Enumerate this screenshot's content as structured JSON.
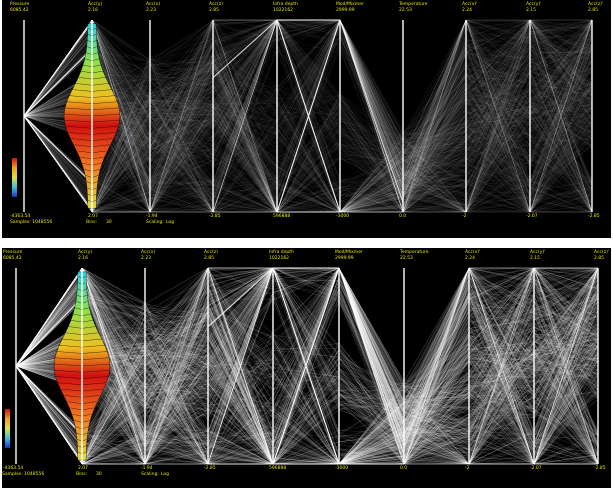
{
  "colors": {
    "background": "#000000",
    "label": "#e8e800",
    "axis": "#ffffff",
    "lines": "#ffffff"
  },
  "axes": [
    {
      "name": "Pressure",
      "max": "6085.42",
      "min": "-4363.54"
    },
    {
      "name": "Acc(y)",
      "max": "2.16",
      "min": "2.07"
    },
    {
      "name": "Acc(x)",
      "max": "2.23",
      "min": "-1.94"
    },
    {
      "name": "Acc(z)",
      "max": "2.85",
      "min": "-2.85"
    },
    {
      "name": "Infra depth",
      "max": "1022162",
      "min": "596888"
    },
    {
      "name": "Mod/Mixmer",
      "max": "2999.99",
      "min": "-3000"
    },
    {
      "name": "Temperature",
      "max": "22.53",
      "min": "0.0"
    },
    {
      "name": "Acc(x)'",
      "max": "2.24",
      "min": "-2"
    },
    {
      "name": "Acc(y)'",
      "max": "2.15",
      "min": "-2.07"
    },
    {
      "name": "Acc(z)'",
      "max": "2.85",
      "min": "-2.85"
    }
  ],
  "footer": {
    "samples": "Samples: 1048556",
    "bins": "Bins:",
    "bins_value": "30",
    "scaling": "Scaling:",
    "scaling_value": "Log"
  },
  "icons": [
    "colormap-legend-icon"
  ]
}
